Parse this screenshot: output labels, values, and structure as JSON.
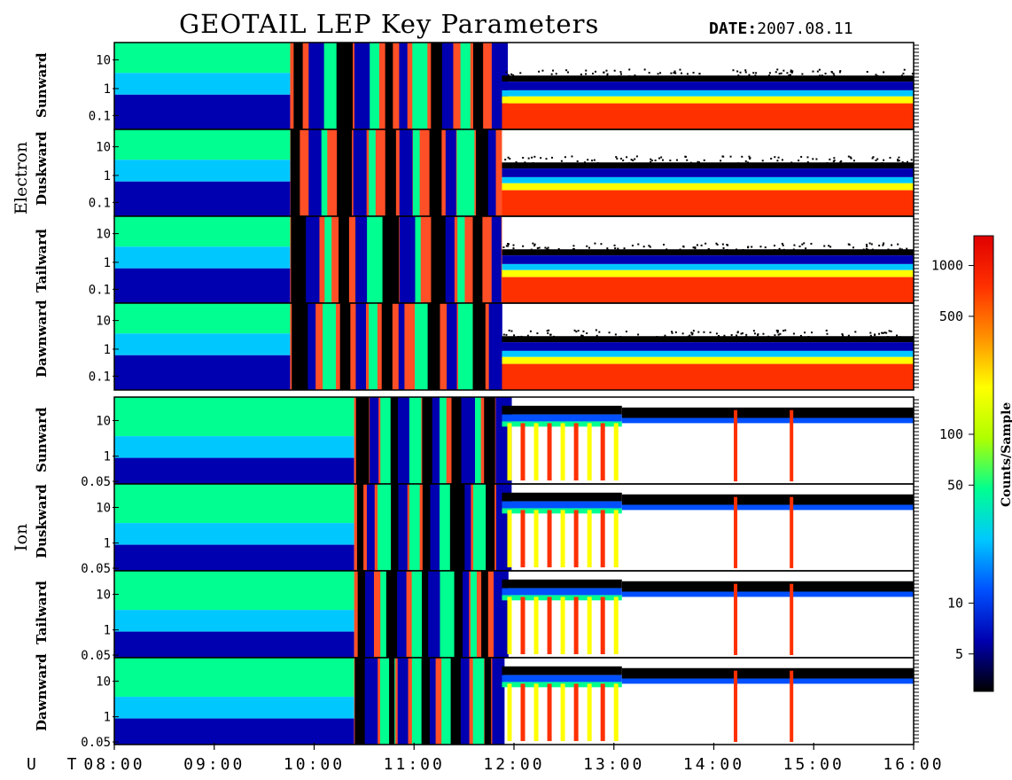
{
  "chart_data": {
    "type": "heatmap",
    "title": "GEOTAIL LEP Key Parameters",
    "date_label": "DATE:",
    "date_value": "2007.08.11",
    "time_axis": {
      "label": "U T",
      "ticks": [
        "08:00",
        "09:00",
        "10:00",
        "11:00",
        "12:00",
        "13:00",
        "14:00",
        "15:00",
        "16:00"
      ],
      "range": [
        "08:00",
        "16:00"
      ]
    },
    "groups": [
      {
        "name": "Electron",
        "panels": [
          {
            "direction": "Sunward",
            "y_ticks": [
              "10",
              "1",
              "0.1"
            ]
          },
          {
            "direction": "Duskward",
            "y_ticks": [
              "10",
              "1",
              "0.1"
            ]
          },
          {
            "direction": "Tailward",
            "y_ticks": [
              "10",
              "1",
              "0.1"
            ]
          },
          {
            "direction": "Dawnward",
            "y_ticks": [
              "10",
              "1",
              "0.1"
            ]
          }
        ]
      },
      {
        "name": "Ion",
        "panels": [
          {
            "direction": "Sunward",
            "y_ticks": [
              "10",
              "1",
              "0.05"
            ]
          },
          {
            "direction": "Duskward",
            "y_ticks": [
              "10",
              "1",
              "0.05"
            ]
          },
          {
            "direction": "Tailward",
            "y_ticks": [
              "10",
              "1",
              "0.05"
            ]
          },
          {
            "direction": "Dawnward",
            "y_ticks": [
              "10",
              "1",
              "0.05"
            ]
          }
        ]
      }
    ],
    "colorbar": {
      "title": "Counts/Sample",
      "scale": "log",
      "range": [
        3,
        1500
      ],
      "ticks": [
        "1000",
        "500",
        "100",
        "50",
        "10",
        "5"
      ],
      "colors": [
        "#000000",
        "#0000b0",
        "#0050ff",
        "#00c8ff",
        "#00ff90",
        "#b0ff00",
        "#ffff00",
        "#ff9000",
        "#ff3000",
        "#e00000"
      ]
    }
  }
}
